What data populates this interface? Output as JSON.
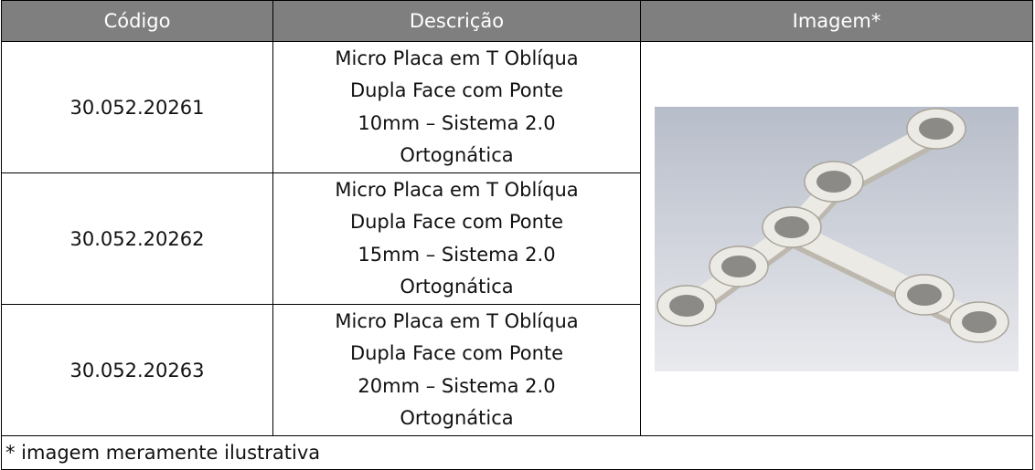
{
  "table": {
    "header": [
      "Código",
      "Descrição",
      "Imagem*"
    ],
    "rows": [
      {
        "code": "30.052.20261",
        "description": [
          "Micro Placa em T Oblíqua",
          "Dupla Face com Ponte",
          "10mm – Sistema 2.0",
          "Ortognática"
        ]
      },
      {
        "code": "30.052.20262",
        "description": [
          "Micro Placa em T Oblíqua",
          "Dupla Face com Ponte",
          "15mm – Sistema 2.0",
          "Ortognática"
        ]
      },
      {
        "code": "30.052.20263",
        "description": [
          "Micro Placa em T Oblíqua",
          "Dupla Face com Ponte",
          "20mm – Sistema 2.0",
          "Ortognática"
        ]
      }
    ],
    "footnote": "* imagem meramente ilustrativa"
  }
}
